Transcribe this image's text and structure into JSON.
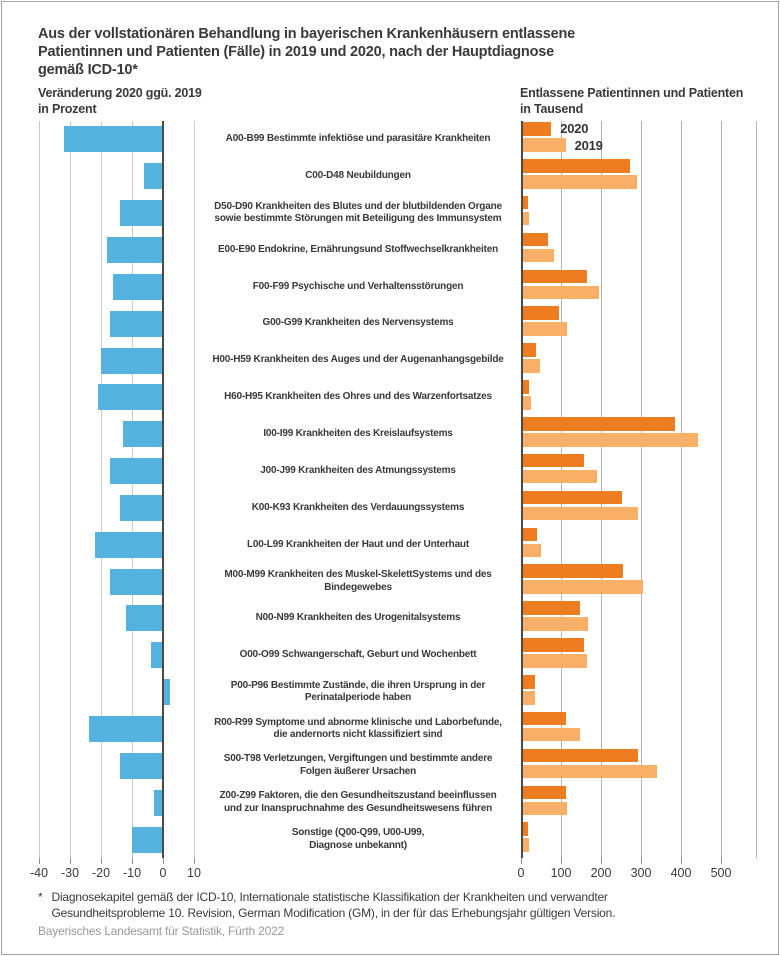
{
  "header": {
    "title_lines": [
      "Aus der vollstationären Behandlung in bayerischen Krankenhäusern entlassene",
      "Patientinnen und Patienten (Fälle) in 2019 und 2020, nach der Hauptdiagnose",
      "gemäß ICD-10*"
    ],
    "left_axis_title_lines": [
      "Veränderung 2020 ggü. 2019",
      "in Prozent"
    ],
    "right_axis_title_lines": [
      "Entlassene Patientinnen und Patienten",
      "in Tausend"
    ]
  },
  "footnote": {
    "marker": "*",
    "lines": [
      "Diagnosekapitel gemäß der ICD-10, Internationale statistische Klassifikation der Krankheiten und verwandter",
      "Gesundheitsprobleme 10. Revision, German Modification (GM), in der für das Erhebungsjahr gültigen Version."
    ]
  },
  "source": "Bayerisches Landesamt für Statistik, Fürth 2022",
  "colors": {
    "bar_blue": "#55B2DE",
    "bar_2020": "#ED7D20",
    "bar_2019": "#F8B069",
    "axis_dark": "#4A4A49",
    "grid_left": "#CBCBCB",
    "grid_right": "#B2B2B2",
    "text": "#3A3A39",
    "source_gray": "#9A9A9A"
  },
  "chart_data": {
    "type": "bar",
    "orientation": "horizontal",
    "categories": [
      "A00-B99 Bestimmte infektiöse und parasitäre Krankheiten",
      "C00-D48 Neubildungen",
      "D50-D90 Krankheiten des Blutes und der blutbildenden Organe sowie bestimmte Störungen mit Beteiligung des Immunsystem",
      "E00-E90 Endokrine, Ernährungsund Stoffwechselkrankheiten",
      "F00-F99 Psychische und Verhaltensstörungen",
      "G00-G99 Krankheiten des Nervensystems",
      "H00-H59 Krankheiten des Auges und der Augenanhangsgebilde",
      "H60-H95 Krankheiten des Ohres und des Warzenfortsatzes",
      "I00-I99 Krankheiten des Kreislaufsystems",
      "J00-J99 Krankheiten des Atmungssystems",
      "K00-K93 Krankheiten des Verdauungssystems",
      "L00-L99 Krankheiten der Haut und der Unterhaut",
      "M00-M99 Krankheiten des Muskel-SkelettSystems und des Bindegewebes",
      "N00-N99 Krankheiten des Urogenitalsystems",
      "O00-O99 Schwangerschaft, Geburt und Wochenbett",
      "P00-P96 Bestimmte Zustände, die ihren Ursprung in der Perinatalperiode haben",
      "R00-R99 Symptome und abnorme klinische und Laborbefunde, die andernorts nicht klassifiziert sind",
      "S00-T98 Verletzungen, Vergiftungen und bestimmte andere Folgen äußerer Ursachen",
      "Z00-Z99 Faktoren, die den Gesundheitszustand beeinflussen und zur Inanspruchnahme des Gesundheitswesens führen",
      "Sonstige (Q00-Q99, U00-U99, Diagnose unbekannt)"
    ],
    "label_lines": [
      [
        "A00-B99 Bestimmte infektiöse und parasitäre Krankheiten"
      ],
      [
        "C00-D48 Neubildungen"
      ],
      [
        "D50-D90 Krankheiten des Blutes und der blutbildenden Organe",
        "sowie bestimmte Störungen mit Beteiligung des Immunsystem"
      ],
      [
        "E00-E90 Endokrine, Ernährungsund Stoffwechselkrankheiten"
      ],
      [
        "F00-F99 Psychische und Verhaltensstörungen"
      ],
      [
        "G00-G99 Krankheiten des Nervensystems"
      ],
      [
        "H00-H59 Krankheiten des Auges und der Augenanhangsgebilde"
      ],
      [
        "H60-H95 Krankheiten des Ohres und des Warzenfortsatzes"
      ],
      [
        "I00-I99 Krankheiten des Kreislaufsystems"
      ],
      [
        "J00-J99 Krankheiten des Atmungssystems"
      ],
      [
        "K00-K93 Krankheiten des Verdauungssystems"
      ],
      [
        "L00-L99 Krankheiten der Haut und der Unterhaut"
      ],
      [
        "M00-M99 Krankheiten des Muskel-SkelettSystems und des",
        "Bindegewebes"
      ],
      [
        "N00-N99 Krankheiten des Urogenitalsystems"
      ],
      [
        "O00-O99 Schwangerschaft, Geburt und Wochenbett"
      ],
      [
        "P00-P96 Bestimmte Zustände, die ihren Ursprung in der",
        "Perinatalperiode haben"
      ],
      [
        "R00-R99 Symptome und abnorme klinische und Laborbefunde,",
        "die andernorts nicht klassifiziert sind"
      ],
      [
        "S00-T98 Verletzungen, Vergiftungen und bestimmte andere",
        "Folgen äußerer Ursachen"
      ],
      [
        "Z00-Z99 Faktoren, die den Gesundheitszustand beeinflussen",
        "und zur Inanspruchnahme des Gesundheitswesens führen"
      ],
      [
        "Sonstige (Q00-Q99, U00-U99,",
        "Diagnose unbekannt)"
      ]
    ],
    "left_chart": {
      "title": "Veränderung 2020 ggü. 2019 in Prozent",
      "unit": "Prozent",
      "values": [
        -32,
        -6,
        -14,
        -18,
        -16,
        -17,
        -20,
        -21,
        -13,
        -17,
        -14,
        -22,
        -17,
        -12,
        -4,
        2,
        -24,
        -14,
        -3,
        -10
      ],
      "xlim": [
        -42,
        11
      ],
      "ticks": [
        -40,
        -30,
        -20,
        -10,
        0,
        10
      ]
    },
    "right_chart": {
      "title": "Entlassene Patientinnen und Patienten in Tausend",
      "unit": "Tausend",
      "series": [
        {
          "name": "2020",
          "values": [
            73,
            270,
            16,
            65,
            162,
            93,
            35,
            18,
            382,
            156,
            250,
            37,
            252,
            145,
            155,
            33,
            110,
            289,
            109,
            16
          ]
        },
        {
          "name": "2019",
          "values": [
            109,
            288,
            18.5,
            79,
            192,
            112,
            44,
            23,
            441,
            187,
            291,
            48,
            303,
            165,
            163,
            32,
            144,
            337,
            112,
            18
          ]
        }
      ],
      "xlim": [
        0,
        590
      ],
      "ticks": [
        0,
        100,
        200,
        300,
        400,
        500
      ]
    }
  }
}
